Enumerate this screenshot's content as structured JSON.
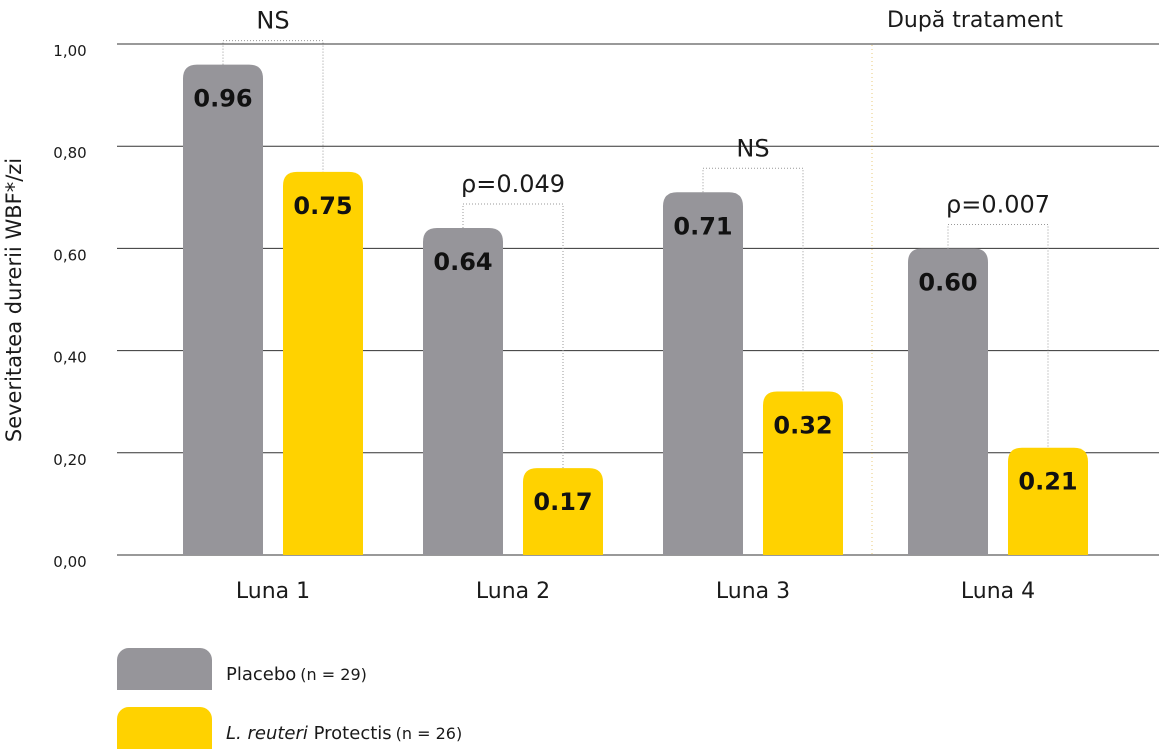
{
  "chart_data": {
    "type": "bar",
    "ylabel": "Severitatea durerii WBF*/zi",
    "y_ticks": [
      "1,00",
      "0,80",
      "0,60",
      "0,40",
      "0,20",
      "0,00"
    ],
    "categories": [
      "Luna 1",
      "Luna 2",
      "Luna 3",
      "Luna 4"
    ],
    "series": [
      {
        "name": "Placebo",
        "n_label": "(n = 29)",
        "color": "#96959a",
        "values": [
          0.96,
          0.64,
          0.71,
          0.6
        ],
        "labels": [
          "0.96",
          "0.64",
          "0.71",
          "0.60"
        ]
      },
      {
        "name_prefix": "L. reuteri",
        "name_suffix": "Protectis",
        "n_label": "(n = 26)",
        "color": "#ffd200",
        "values": [
          0.75,
          0.17,
          0.32,
          0.21
        ],
        "labels": [
          "0.75",
          "0.17",
          "0.32",
          "0.21"
        ]
      }
    ],
    "significance": [
      "NS",
      "ρ=0.049",
      "NS",
      "ρ=0.007"
    ],
    "period_label": "După tratament",
    "grid": true,
    "legend_position": "bottom-left"
  }
}
